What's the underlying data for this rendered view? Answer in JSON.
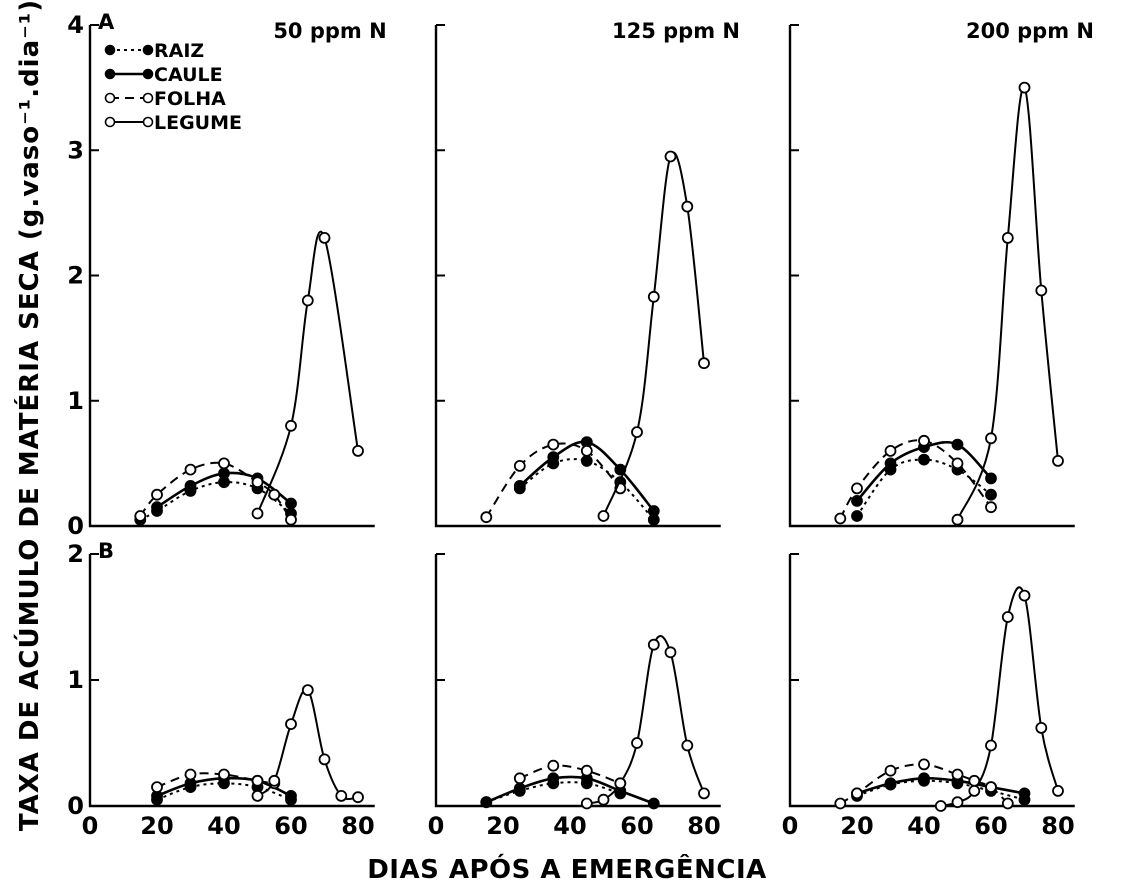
{
  "chart_data": {
    "type": "line",
    "ylabel": "TAXA DE ACÚMULO DE MATÉRIA SECA  (g.vaso⁻¹.dia⁻¹)",
    "xlabel": "DIAS APÓS A EMERGÊNCIA",
    "legend": {
      "placement": "top-left",
      "entries": [
        {
          "name": "RAIZ",
          "marker": "filled",
          "line": "dotted"
        },
        {
          "name": "CAULE",
          "marker": "filled",
          "line": "solid"
        },
        {
          "name": "FOLHA",
          "marker": "open",
          "line": "dashed"
        },
        {
          "name": "LEGUME",
          "marker": "open",
          "line": "solid"
        }
      ]
    },
    "column_titles": [
      "50 ppm N",
      "125 ppm N",
      "200 ppm N"
    ],
    "rows": [
      {
        "letter": "A",
        "ylim": [
          0,
          4
        ],
        "yticks": [
          0,
          1,
          2,
          3,
          4
        ],
        "ytick_labels_shown_first_column_only": true
      },
      {
        "letter": "B",
        "ylim": [
          0,
          2
        ],
        "yticks": [
          0,
          1,
          2
        ],
        "ytick_labels_shown_first_column_only": true
      }
    ],
    "xlim": [
      0,
      85
    ],
    "xticks": [
      0,
      20,
      40,
      60,
      80
    ],
    "panels": [
      {
        "row": "A",
        "column": "50 ppm N",
        "series": [
          {
            "name": "RAIZ",
            "x": [
              15,
              20,
              30,
              40,
              50,
              60
            ],
            "y": [
              0.05,
              0.12,
              0.28,
              0.35,
              0.3,
              0.1
            ]
          },
          {
            "name": "CAULE",
            "x": [
              20,
              30,
              40,
              50,
              60
            ],
            "y": [
              0.15,
              0.32,
              0.42,
              0.38,
              0.18
            ]
          },
          {
            "name": "FOLHA",
            "x": [
              15,
              20,
              30,
              40,
              50,
              55,
              60
            ],
            "y": [
              0.08,
              0.25,
              0.45,
              0.5,
              0.35,
              0.25,
              0.05
            ]
          },
          {
            "name": "LEGUME",
            "x": [
              50,
              60,
              65,
              70,
              80
            ],
            "y": [
              0.1,
              0.8,
              1.8,
              2.3,
              0.6
            ]
          }
        ]
      },
      {
        "row": "A",
        "column": "125 ppm N",
        "series": [
          {
            "name": "RAIZ",
            "x": [
              25,
              35,
              45,
              55,
              65
            ],
            "y": [
              0.3,
              0.5,
              0.52,
              0.35,
              0.05
            ]
          },
          {
            "name": "CAULE",
            "x": [
              25,
              35,
              45,
              55,
              65
            ],
            "y": [
              0.32,
              0.55,
              0.67,
              0.45,
              0.12
            ]
          },
          {
            "name": "FOLHA",
            "x": [
              15,
              25,
              35,
              45,
              55
            ],
            "y": [
              0.07,
              0.48,
              0.65,
              0.6,
              0.3
            ]
          },
          {
            "name": "LEGUME",
            "x": [
              50,
              60,
              65,
              70,
              75,
              80
            ],
            "y": [
              0.08,
              0.75,
              1.83,
              2.95,
              2.55,
              1.3
            ]
          }
        ]
      },
      {
        "row": "A",
        "column": "200 ppm N",
        "series": [
          {
            "name": "RAIZ",
            "x": [
              20,
              30,
              40,
              50,
              60
            ],
            "y": [
              0.08,
              0.45,
              0.53,
              0.45,
              0.25
            ]
          },
          {
            "name": "CAULE",
            "x": [
              20,
              30,
              40,
              50,
              60
            ],
            "y": [
              0.2,
              0.5,
              0.63,
              0.65,
              0.38
            ]
          },
          {
            "name": "FOLHA",
            "x": [
              15,
              20,
              30,
              40,
              50,
              60
            ],
            "y": [
              0.06,
              0.3,
              0.6,
              0.68,
              0.5,
              0.15
            ]
          },
          {
            "name": "LEGUME",
            "x": [
              50,
              60,
              65,
              70,
              75,
              80
            ],
            "y": [
              0.05,
              0.7,
              2.3,
              3.5,
              1.88,
              0.52
            ]
          }
        ]
      },
      {
        "row": "B",
        "column": "50 ppm N",
        "series": [
          {
            "name": "RAIZ",
            "x": [
              20,
              30,
              40,
              50,
              60
            ],
            "y": [
              0.05,
              0.15,
              0.18,
              0.15,
              0.05
            ]
          },
          {
            "name": "CAULE",
            "x": [
              20,
              30,
              40,
              50,
              60
            ],
            "y": [
              0.08,
              0.18,
              0.22,
              0.2,
              0.08
            ]
          },
          {
            "name": "FOLHA",
            "x": [
              20,
              30,
              40,
              50,
              55
            ],
            "y": [
              0.15,
              0.25,
              0.25,
              0.2,
              0.18
            ]
          },
          {
            "name": "LEGUME",
            "x": [
              50,
              55,
              60,
              65,
              70,
              75,
              80
            ],
            "y": [
              0.08,
              0.2,
              0.65,
              0.92,
              0.37,
              0.08,
              0.07
            ]
          }
        ]
      },
      {
        "row": "B",
        "column": "125 ppm N",
        "series": [
          {
            "name": "RAIZ",
            "x": [
              15,
              25,
              35,
              45,
              55
            ],
            "y": [
              0.03,
              0.12,
              0.18,
              0.18,
              0.1
            ]
          },
          {
            "name": "CAULE",
            "x": [
              15,
              25,
              35,
              45,
              55,
              65
            ],
            "y": [
              0.03,
              0.14,
              0.22,
              0.22,
              0.12,
              0.02
            ]
          },
          {
            "name": "FOLHA",
            "x": [
              25,
              35,
              45,
              55
            ],
            "y": [
              0.22,
              0.32,
              0.28,
              0.18
            ]
          },
          {
            "name": "LEGUME",
            "x": [
              45,
              50,
              55,
              60,
              65,
              70,
              75,
              80
            ],
            "y": [
              0.02,
              0.05,
              0.18,
              0.5,
              1.28,
              1.22,
              0.48,
              0.1
            ]
          }
        ]
      },
      {
        "row": "B",
        "column": "200 ppm N",
        "series": [
          {
            "name": "RAIZ",
            "x": [
              20,
              30,
              40,
              50,
              60,
              70
            ],
            "y": [
              0.08,
              0.17,
              0.2,
              0.18,
              0.12,
              0.05
            ]
          },
          {
            "name": "CAULE",
            "x": [
              20,
              30,
              40,
              50,
              60,
              70
            ],
            "y": [
              0.1,
              0.18,
              0.22,
              0.2,
              0.15,
              0.1
            ]
          },
          {
            "name": "FOLHA",
            "x": [
              15,
              20,
              30,
              40,
              50,
              55,
              60,
              65
            ],
            "y": [
              0.02,
              0.1,
              0.28,
              0.33,
              0.25,
              0.2,
              0.15,
              0.02
            ]
          },
          {
            "name": "LEGUME",
            "x": [
              45,
              50,
              55,
              60,
              65,
              70,
              75,
              80
            ],
            "y": [
              0.0,
              0.03,
              0.12,
              0.48,
              1.5,
              1.67,
              0.62,
              0.12
            ]
          }
        ]
      }
    ]
  }
}
